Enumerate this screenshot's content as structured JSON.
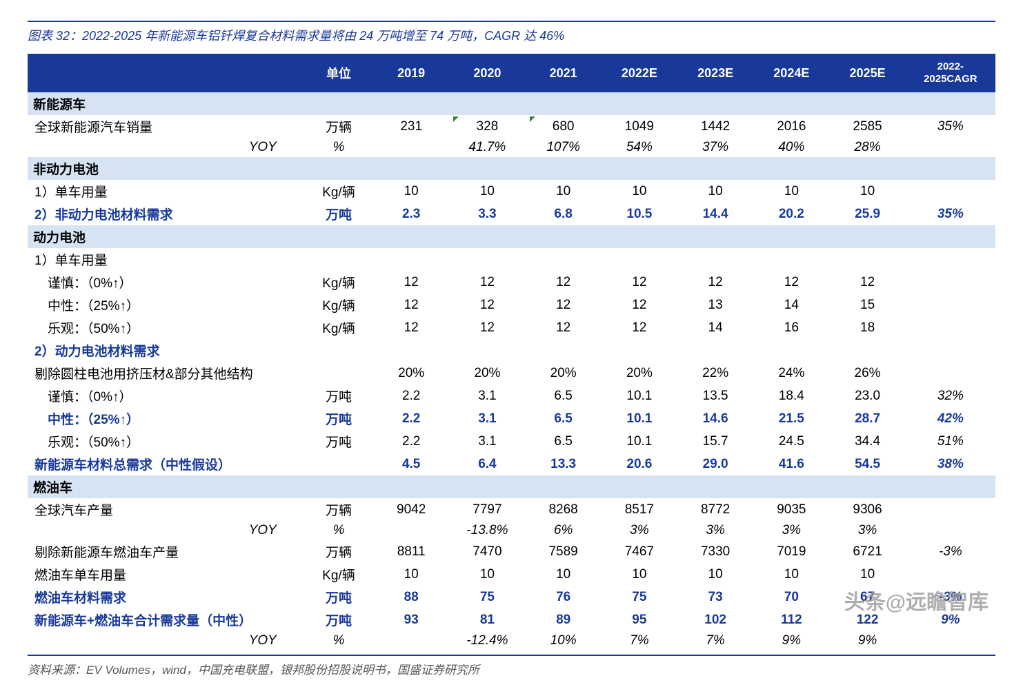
{
  "title": "图表 32：2022-2025 年新能源车铝钎焊复合材料需求量将由 24 万吨增至 74 万吨，CAGR 达 46%",
  "source": "资料来源：EV Volumes，wind，中国充电联盟，银邦股份招股说明书，国盛证券研究所",
  "watermark": "头条@远瞻智库",
  "headers": [
    "",
    "单位",
    "2019",
    "2020",
    "2021",
    "2022E",
    "2023E",
    "2024E",
    "2025E",
    "2022-2025CAGR"
  ],
  "colors": {
    "primary": "#18399a",
    "section_bg": "#d6e3f3",
    "text": "#000000",
    "marker": "#2e8b2e"
  },
  "rows": [
    {
      "type": "section",
      "label": "新能源车"
    },
    {
      "type": "data",
      "label": "全球新能源汽车销量",
      "unit": "万辆",
      "vals": [
        "231",
        "328",
        "680",
        "1049",
        "1442",
        "2016",
        "2585"
      ],
      "cagr": "35%",
      "markers": [
        1,
        2
      ]
    },
    {
      "type": "yoy",
      "label": "YOY",
      "unit": "%",
      "vals": [
        "",
        "41.7%",
        "107%",
        "54%",
        "37%",
        "40%",
        "28%"
      ],
      "cagr": ""
    },
    {
      "type": "section",
      "label": "非动力电池"
    },
    {
      "type": "data",
      "label": "1）单车用量",
      "unit": "Kg/辆",
      "vals": [
        "10",
        "10",
        "10",
        "10",
        "10",
        "10",
        "10"
      ],
      "cagr": ""
    },
    {
      "type": "hl",
      "label": "2）非动力电池材料需求",
      "unit": "万吨",
      "vals": [
        "2.3",
        "3.3",
        "6.8",
        "10.5",
        "14.4",
        "20.2",
        "25.9"
      ],
      "cagr": "35%"
    },
    {
      "type": "section",
      "label": "动力电池"
    },
    {
      "type": "data",
      "label": "1）单车用量",
      "unit": "",
      "vals": [
        "",
        "",
        "",
        "",
        "",
        "",
        ""
      ],
      "cagr": ""
    },
    {
      "type": "data",
      "label": "　谨慎：（0%↑）",
      "unit": "Kg/辆",
      "vals": [
        "12",
        "12",
        "12",
        "12",
        "12",
        "12",
        "12"
      ],
      "cagr": ""
    },
    {
      "type": "data",
      "label": "　中性：（25%↑）",
      "unit": "Kg/辆",
      "vals": [
        "12",
        "12",
        "12",
        "12",
        "13",
        "14",
        "15"
      ],
      "cagr": ""
    },
    {
      "type": "data",
      "label": "　乐观：（50%↑）",
      "unit": "Kg/辆",
      "vals": [
        "12",
        "12",
        "12",
        "12",
        "14",
        "16",
        "18"
      ],
      "cagr": ""
    },
    {
      "type": "hl",
      "label": "2）动力电池材料需求",
      "unit": "",
      "vals": [
        "",
        "",
        "",
        "",
        "",
        "",
        ""
      ],
      "cagr": ""
    },
    {
      "type": "data",
      "label": "剔除圆柱电池用挤压材&部分其他结构",
      "unit": "",
      "vals": [
        "20%",
        "20%",
        "20%",
        "20%",
        "22%",
        "24%",
        "26%"
      ],
      "cagr": ""
    },
    {
      "type": "data",
      "label": "　谨慎：（0%↑）",
      "unit": "万吨",
      "vals": [
        "2.2",
        "3.1",
        "6.5",
        "10.1",
        "13.5",
        "18.4",
        "23.0"
      ],
      "cagr": "32%"
    },
    {
      "type": "hl",
      "label": "　中性：（25%↑）",
      "unit": "万吨",
      "vals": [
        "2.2",
        "3.1",
        "6.5",
        "10.1",
        "14.6",
        "21.5",
        "28.7"
      ],
      "cagr": "42%"
    },
    {
      "type": "data",
      "label": "　乐观：（50%↑）",
      "unit": "万吨",
      "vals": [
        "2.2",
        "3.1",
        "6.5",
        "10.1",
        "15.7",
        "24.5",
        "34.4"
      ],
      "cagr": "51%"
    },
    {
      "type": "hl",
      "label": "新能源车材料总需求（中性假设）",
      "unit": "",
      "vals": [
        "4.5",
        "6.4",
        "13.3",
        "20.6",
        "29.0",
        "41.6",
        "54.5"
      ],
      "cagr": "38%"
    },
    {
      "type": "section",
      "label": "燃油车"
    },
    {
      "type": "data",
      "label": "全球汽车产量",
      "unit": "万辆",
      "vals": [
        "9042",
        "7797",
        "8268",
        "8517",
        "8772",
        "9035",
        "9306"
      ],
      "cagr": ""
    },
    {
      "type": "yoy",
      "label": "YOY",
      "unit": "%",
      "vals": [
        "",
        "-13.8%",
        "6%",
        "3%",
        "3%",
        "3%",
        "3%"
      ],
      "cagr": ""
    },
    {
      "type": "data",
      "label": "剔除新能源车燃油车产量",
      "unit": "万辆",
      "vals": [
        "8811",
        "7470",
        "7589",
        "7467",
        "7330",
        "7019",
        "6721"
      ],
      "cagr": "-3%"
    },
    {
      "type": "data",
      "label": "燃油车单车用量",
      "unit": "Kg/辆",
      "vals": [
        "10",
        "10",
        "10",
        "10",
        "10",
        "10",
        "10"
      ],
      "cagr": ""
    },
    {
      "type": "hl",
      "label": "燃油车材料需求",
      "unit": "万吨",
      "vals": [
        "88",
        "75",
        "76",
        "75",
        "73",
        "70",
        "67"
      ],
      "cagr": "-3%"
    },
    {
      "type": "hl",
      "label": "新能源车+燃油车合计需求量（中性）",
      "unit": "万吨",
      "vals": [
        "93",
        "81",
        "89",
        "95",
        "102",
        "112",
        "122"
      ],
      "cagr": "9%"
    },
    {
      "type": "yoy",
      "label": "YOY",
      "unit": "%",
      "vals": [
        "",
        "-12.4%",
        "10%",
        "7%",
        "7%",
        "9%",
        "9%"
      ],
      "cagr": ""
    }
  ]
}
